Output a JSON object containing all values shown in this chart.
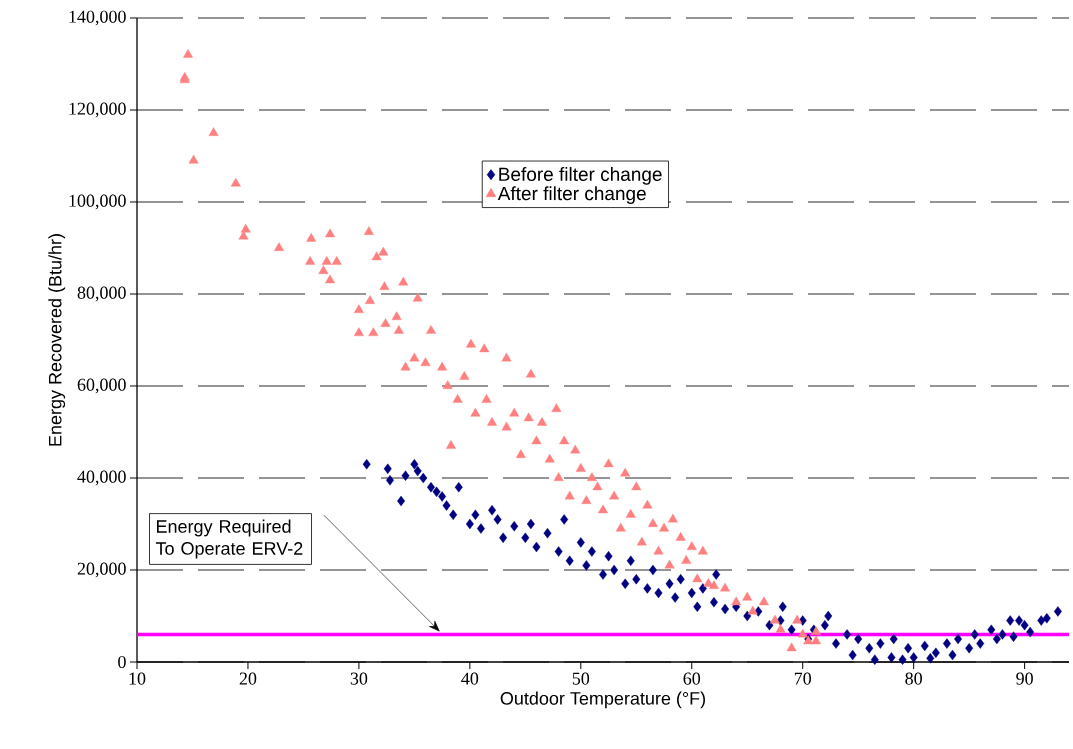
{
  "chart_data": {
    "type": "scatter",
    "xlabel": "Outdoor Temperature (°F)",
    "ylabel": "Energy Recovered (Btu/hr)",
    "xlim": [
      10,
      94
    ],
    "xticks": [
      10,
      20,
      30,
      40,
      50,
      60,
      70,
      80,
      90
    ],
    "ylim": [
      0,
      140000
    ],
    "yticks": [
      {
        "value": 0,
        "label": "0"
      },
      {
        "value": 20000,
        "label": "20,000"
      },
      {
        "value": 40000,
        "label": "40,000"
      },
      {
        "value": 60000,
        "label": "60,000"
      },
      {
        "value": 80000,
        "label": "80,000"
      },
      {
        "value": 100000,
        "label": "100,000"
      },
      {
        "value": 120000,
        "label": "120,000"
      },
      {
        "value": 140000,
        "label": "140,000"
      }
    ],
    "grid": "y",
    "legend": "top",
    "ref_lines": [
      {
        "axis": "y",
        "value": 6000,
        "color": "#ff00ff"
      }
    ],
    "annotations": [
      "Energy Required To Operate ERV-2"
    ],
    "series": [
      {
        "name": "Before filter change",
        "color": "#000080",
        "marker": "diamond",
        "x": [
          30.7,
          32.6,
          32.8,
          33.8,
          34.2,
          35.0,
          35.3,
          35.8,
          36.5,
          37.0,
          37.5,
          37.9,
          38.5,
          39.0,
          40.0,
          40.5,
          41.0,
          42.0,
          42.5,
          43.0,
          44.0,
          45.0,
          45.5,
          46.0,
          47.0,
          48.0,
          48.5,
          49.0,
          50.0,
          50.5,
          51.0,
          52.0,
          52.5,
          53.0,
          54.0,
          54.5,
          55.0,
          56.0,
          56.5,
          57.0,
          58.0,
          58.5,
          59.0,
          60.0,
          60.5,
          61.0,
          62.0,
          62.2,
          63.0,
          64.0,
          65.0,
          66.0,
          67.0,
          68.0,
          68.2,
          69.0,
          70.0,
          70.5,
          71.0,
          72.0,
          72.3,
          73.0,
          74.0,
          74.5,
          75.0,
          76.0,
          76.5,
          77.0,
          78.0,
          78.2,
          79.0,
          79.5,
          80.0,
          81.0,
          81.5,
          82.0,
          83.0,
          83.5,
          84.0,
          85.0,
          85.5,
          86.0,
          87.0,
          87.5,
          88.0,
          88.7,
          89.0,
          89.5,
          90.0,
          90.5,
          91.5,
          92.0,
          93.0
        ],
        "values": [
          43000,
          42000,
          39500,
          35000,
          40500,
          43000,
          41500,
          40000,
          38000,
          37000,
          36000,
          34000,
          32000,
          38000,
          30000,
          32000,
          29000,
          33000,
          31000,
          27000,
          29500,
          27000,
          30000,
          25000,
          28000,
          24000,
          31000,
          22000,
          26000,
          21000,
          24000,
          19000,
          23000,
          20000,
          17000,
          22000,
          18000,
          16000,
          20000,
          15000,
          17000,
          14000,
          18000,
          15000,
          12000,
          16000,
          13000,
          19000,
          11500,
          12000,
          10000,
          11000,
          8000,
          9000,
          12000,
          7000,
          9000,
          5000,
          7000,
          8000,
          10000,
          4000,
          6000,
          1500,
          5000,
          3000,
          500,
          4000,
          1000,
          5000,
          500,
          3000,
          1000,
          3500,
          800,
          2000,
          4000,
          1500,
          5000,
          3000,
          6000,
          4000,
          7000,
          5000,
          6000,
          9000,
          5500,
          9000,
          8000,
          6500,
          9000,
          9500,
          11000
        ]
      },
      {
        "name": "After filter change",
        "color": "#ff8080",
        "marker": "triangle",
        "x": [
          14.3,
          14.3,
          14.6,
          15.1,
          16.9,
          18.9,
          19.6,
          19.8,
          22.8,
          25.7,
          25.6,
          26.8,
          27.1,
          27.4,
          27.4,
          28.0,
          30.0,
          30.0,
          30.9,
          31.0,
          31.3,
          31.6,
          32.2,
          32.3,
          32.4,
          33.4,
          33.6,
          34.0,
          34.2,
          35.0,
          35.3,
          36.0,
          36.5,
          37.5,
          38.0,
          38.3,
          38.9,
          39.5,
          40.1,
          40.5,
          41.3,
          41.5,
          42.0,
          43.3,
          43.3,
          44.0,
          44.6,
          45.3,
          45.5,
          46.0,
          46.5,
          47.2,
          47.8,
          48.0,
          48.5,
          49.0,
          49.5,
          50.0,
          50.5,
          51.0,
          51.5,
          52.0,
          52.5,
          53.0,
          53.6,
          54.0,
          54.5,
          55.0,
          55.5,
          56.0,
          56.5,
          57.0,
          57.5,
          58.0,
          58.3,
          59.0,
          59.5,
          60.0,
          60.5,
          61.0,
          61.5,
          62.0,
          63.0,
          64.0,
          65.0,
          65.5,
          66.5,
          67.5,
          68.0,
          69.0,
          69.5,
          70.0,
          70.5,
          71.2,
          71.2
        ],
        "values": [
          127000,
          126500,
          132000,
          109000,
          115000,
          104000,
          92500,
          94000,
          90000,
          92000,
          87000,
          85000,
          87000,
          93000,
          83000,
          87000,
          71500,
          76500,
          93500,
          78500,
          71500,
          88000,
          89000,
          81500,
          73500,
          75000,
          72000,
          82500,
          64000,
          66000,
          79000,
          65000,
          72000,
          64000,
          60000,
          47000,
          57000,
          62000,
          69000,
          54000,
          68000,
          57000,
          52000,
          66000,
          51000,
          54000,
          45000,
          53000,
          62500,
          48000,
          52000,
          44000,
          55000,
          40000,
          48000,
          36000,
          46000,
          42000,
          35000,
          40000,
          38000,
          33000,
          43000,
          36000,
          29000,
          41000,
          32000,
          38000,
          26000,
          34000,
          30000,
          24000,
          29000,
          21000,
          31000,
          27000,
          22000,
          25000,
          18000,
          24000,
          17000,
          16500,
          16000,
          13000,
          14000,
          11000,
          13000,
          9000,
          7000,
          3000,
          9000,
          6000,
          4500,
          6500,
          4500
        ]
      }
    ]
  }
}
